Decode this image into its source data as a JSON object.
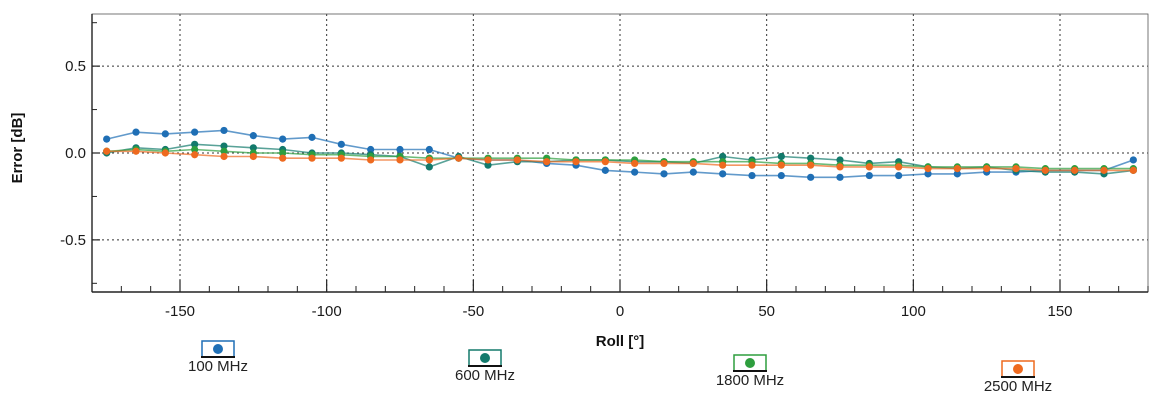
{
  "chart_data": {
    "type": "line",
    "xlabel": "Roll [°]",
    "ylabel": "Error [dB]",
    "xlim": [
      -180,
      180
    ],
    "ylim": [
      -0.8,
      0.8
    ],
    "xticks": [
      -150,
      -100,
      -50,
      0,
      50,
      100,
      150
    ],
    "xtick_labels": [
      "-150",
      "-100",
      "-50",
      "0",
      "50",
      "100",
      "150"
    ],
    "yticks": [
      0.5,
      0.0,
      -0.5
    ],
    "ytick_labels": [
      "0.5",
      "0.0",
      "-0.5"
    ],
    "grid": true,
    "legend_placement": "bottom",
    "x": [
      -175,
      -165,
      -155,
      -145,
      -135,
      -125,
      -115,
      -105,
      -95,
      -85,
      -75,
      -65,
      -55,
      -45,
      -35,
      -25,
      -15,
      -5,
      5,
      15,
      25,
      35,
      45,
      55,
      65,
      75,
      85,
      95,
      105,
      115,
      125,
      135,
      145,
      155,
      165,
      175
    ],
    "series": [
      {
        "name": "100 MHz",
        "color": "#1f6fb5",
        "values": [
          0.08,
          0.12,
          0.11,
          0.12,
          0.13,
          0.1,
          0.08,
          0.09,
          0.05,
          0.02,
          0.02,
          0.02,
          -0.03,
          -0.04,
          -0.04,
          -0.06,
          -0.07,
          -0.1,
          -0.11,
          -0.12,
          -0.11,
          -0.12,
          -0.13,
          -0.13,
          -0.14,
          -0.14,
          -0.13,
          -0.13,
          -0.12,
          -0.12,
          -0.11,
          -0.11,
          -0.1,
          -0.1,
          -0.1,
          -0.04
        ]
      },
      {
        "name": "600 MHz",
        "color": "#137a6c",
        "values": [
          0.0,
          0.03,
          0.02,
          0.05,
          0.04,
          0.03,
          0.02,
          0.0,
          0.0,
          -0.01,
          -0.02,
          -0.08,
          -0.02,
          -0.07,
          -0.05,
          -0.05,
          -0.04,
          -0.04,
          -0.05,
          -0.05,
          -0.06,
          -0.02,
          -0.04,
          -0.02,
          -0.03,
          -0.04,
          -0.06,
          -0.05,
          -0.08,
          -0.09,
          -0.08,
          -0.1,
          -0.11,
          -0.11,
          -0.12,
          -0.1
        ]
      },
      {
        "name": "1800 MHz",
        "color": "#2e9e3e",
        "values": [
          0.01,
          0.02,
          0.01,
          0.02,
          0.01,
          0.0,
          0.0,
          -0.01,
          -0.01,
          -0.02,
          -0.02,
          -0.03,
          -0.03,
          -0.03,
          -0.03,
          -0.03,
          -0.04,
          -0.04,
          -0.04,
          -0.05,
          -0.05,
          -0.05,
          -0.05,
          -0.06,
          -0.06,
          -0.07,
          -0.07,
          -0.07,
          -0.08,
          -0.08,
          -0.08,
          -0.08,
          -0.09,
          -0.09,
          -0.09,
          -0.09
        ]
      },
      {
        "name": "2500 MHz",
        "color": "#ee6a1f",
        "values": [
          0.01,
          0.01,
          0.0,
          -0.01,
          -0.02,
          -0.02,
          -0.03,
          -0.03,
          -0.03,
          -0.04,
          -0.04,
          -0.04,
          -0.03,
          -0.04,
          -0.04,
          -0.05,
          -0.05,
          -0.05,
          -0.06,
          -0.06,
          -0.06,
          -0.07,
          -0.07,
          -0.07,
          -0.07,
          -0.08,
          -0.08,
          -0.08,
          -0.09,
          -0.09,
          -0.09,
          -0.09,
          -0.1,
          -0.1,
          -0.1,
          -0.1
        ]
      }
    ]
  }
}
